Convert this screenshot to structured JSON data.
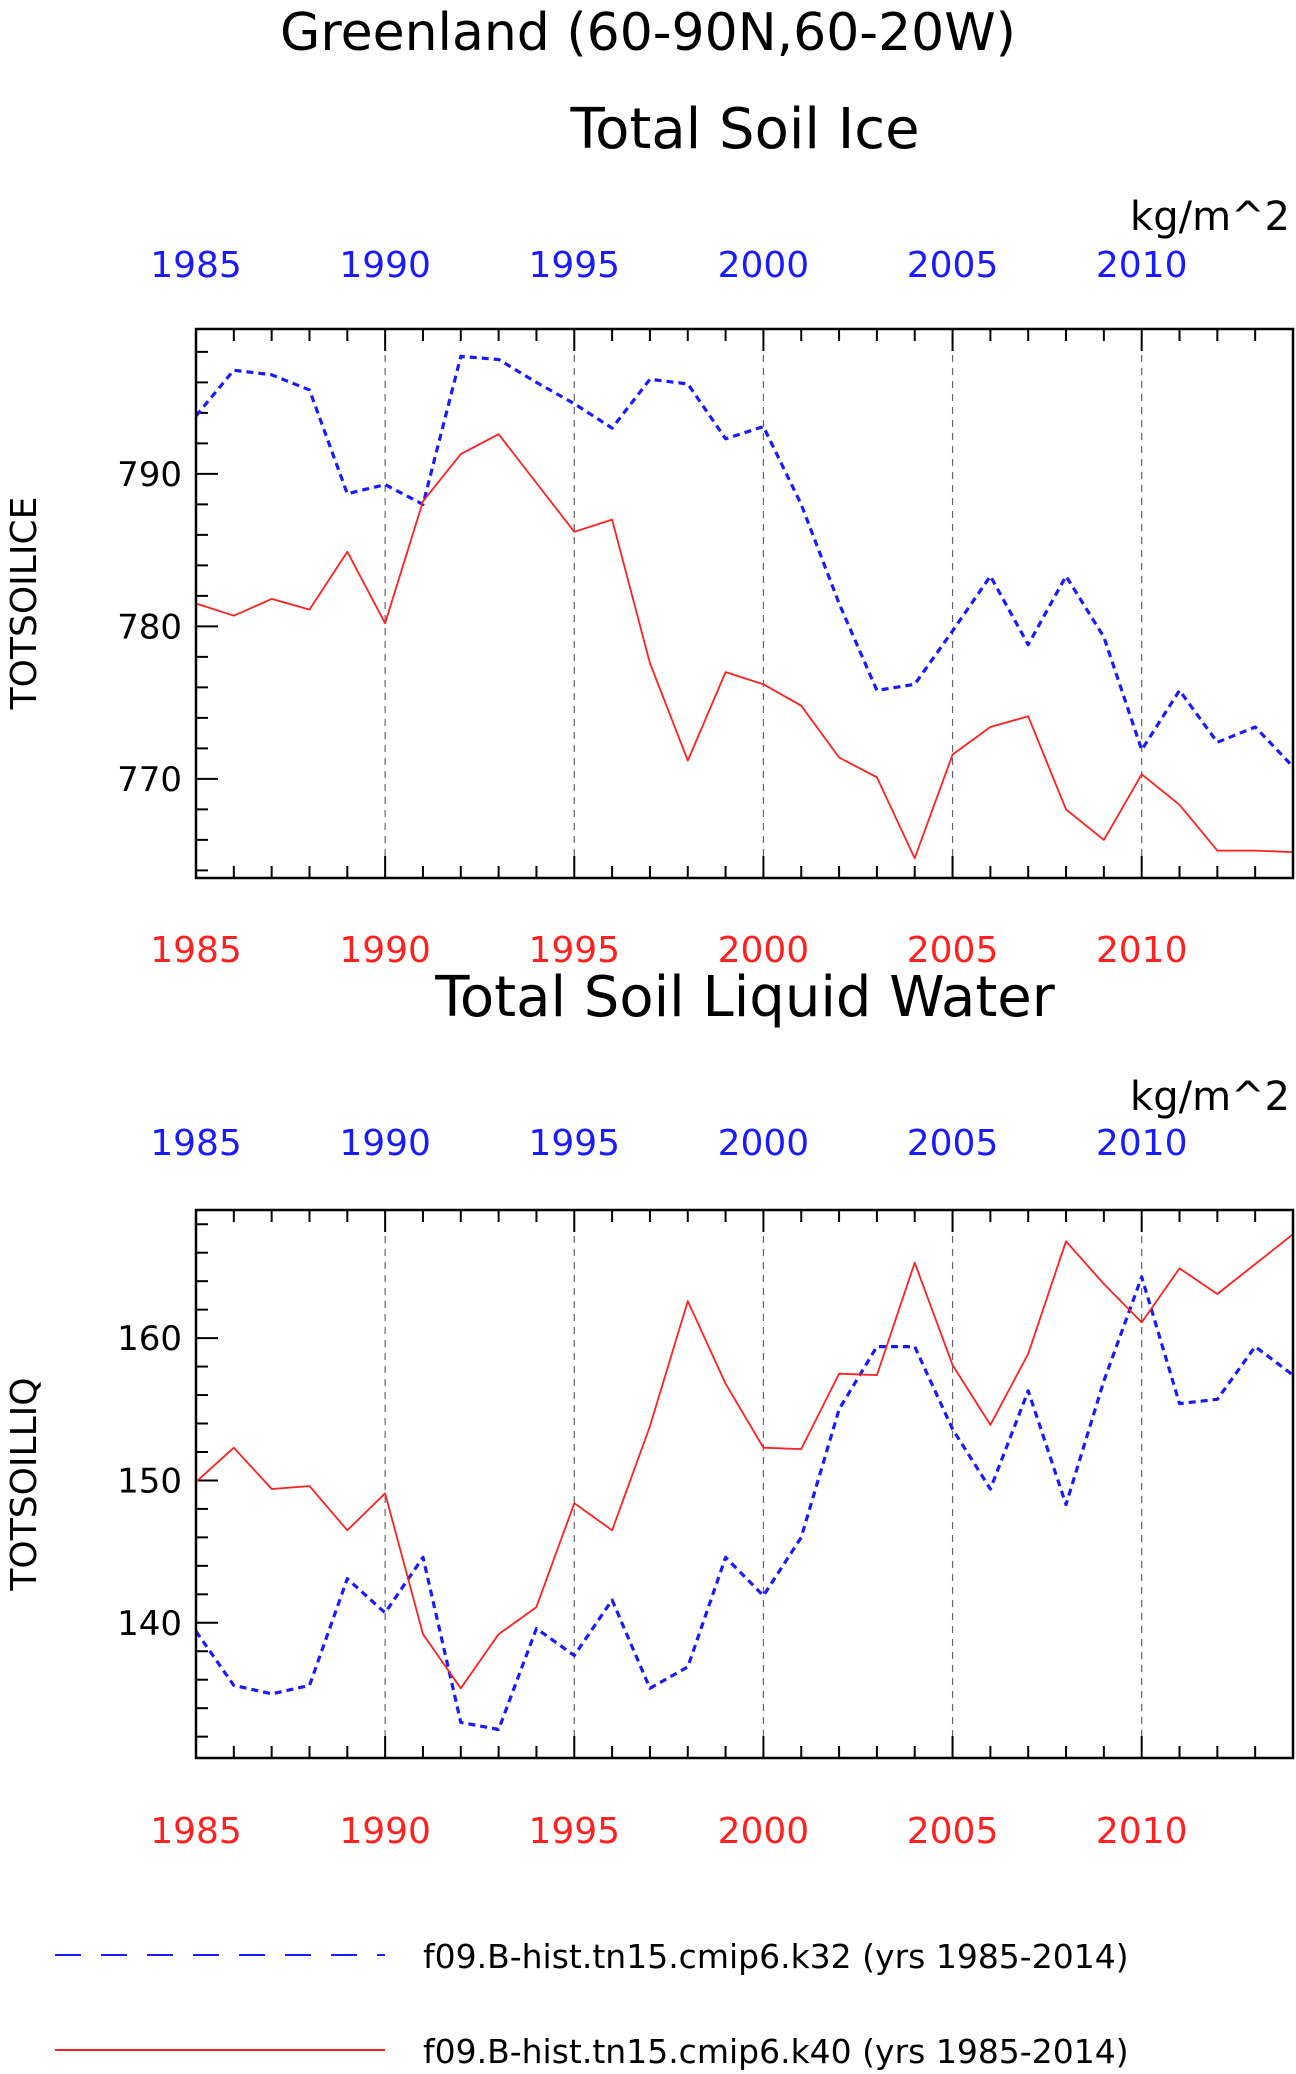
{
  "figure": {
    "title": "Greenland (60-90N,60-20W)"
  },
  "colors": {
    "blue": "#1a1aff",
    "red": "#ff2020",
    "axis": "#000000",
    "grid": "#666666"
  },
  "chart_data": [
    {
      "type": "line",
      "title": "Total Soil Ice",
      "units": "kg/m^2",
      "ylabel": "TOTSOILICE",
      "xlim": [
        1985,
        2014
      ],
      "ylim": [
        763.5,
        799.5
      ],
      "yticks": [
        770,
        780,
        790
      ],
      "xticks": [
        1985,
        1990,
        1995,
        2000,
        2005,
        2010
      ],
      "x_top_tick_color": "#1a1aff",
      "x_bottom_tick_color": "#ff2020",
      "grid": "dashed vertical at labeled years",
      "x": [
        1985,
        1986,
        1987,
        1988,
        1989,
        1990,
        1991,
        1992,
        1993,
        1994,
        1995,
        1996,
        1997,
        1998,
        1999,
        2000,
        2001,
        2002,
        2003,
        2004,
        2005,
        2006,
        2007,
        2008,
        2009,
        2010,
        2011,
        2012,
        2013,
        2014
      ],
      "series": [
        {
          "name": "f09.B-hist.tn15.cmip6.k32 (yrs 1985-2014)",
          "style": "dashed",
          "color": "#1a1aff",
          "values": [
            793.8,
            796.8,
            796.5,
            795.5,
            788.7,
            789.3,
            788.0,
            797.7,
            797.5,
            796.0,
            794.6,
            793.0,
            796.2,
            795.9,
            792.3,
            793.1,
            788.0,
            781.5,
            775.8,
            776.2,
            779.7,
            783.3,
            778.8,
            783.3,
            779.3,
            771.9,
            775.8,
            772.4,
            773.4,
            770.8
          ]
        },
        {
          "name": "f09.B-hist.tn15.cmip6.k40 (yrs 1985-2014)",
          "style": "solid",
          "color": "#ff2020",
          "values": [
            781.5,
            780.7,
            781.8,
            781.1,
            784.9,
            780.2,
            788.2,
            791.3,
            792.6,
            789.4,
            786.2,
            787.0,
            777.6,
            771.2,
            777.0,
            776.2,
            774.8,
            771.4,
            770.1,
            764.8,
            771.6,
            773.4,
            774.1,
            768.0,
            766.0,
            770.3,
            768.3,
            765.3,
            765.3,
            765.2
          ]
        }
      ]
    },
    {
      "type": "line",
      "title": "Total Soil Liquid Water",
      "units": "kg/m^2",
      "ylabel": "TOTSOILLIQ",
      "xlim": [
        1985,
        2014
      ],
      "ylim": [
        130.5,
        169
      ],
      "yticks": [
        140,
        150,
        160
      ],
      "xticks": [
        1985,
        1990,
        1995,
        2000,
        2005,
        2010
      ],
      "x_top_tick_color": "#1a1aff",
      "x_bottom_tick_color": "#ff2020",
      "grid": "dashed vertical at labeled years",
      "x": [
        1985,
        1986,
        1987,
        1988,
        1989,
        1990,
        1991,
        1992,
        1993,
        1994,
        1995,
        1996,
        1997,
        1998,
        1999,
        2000,
        2001,
        2002,
        2003,
        2004,
        2005,
        2006,
        2007,
        2008,
        2009,
        2010,
        2011,
        2012,
        2013,
        2014
      ],
      "series": [
        {
          "name": "f09.B-hist.tn15.cmip6.k32 (yrs 1985-2014)",
          "style": "dashed",
          "color": "#1a1aff",
          "values": [
            139.4,
            135.6,
            135.0,
            135.6,
            143.1,
            140.7,
            144.6,
            133.0,
            132.5,
            139.6,
            137.7,
            141.6,
            135.4,
            136.9,
            144.6,
            141.9,
            146.0,
            155.0,
            159.4,
            159.4,
            153.6,
            149.4,
            156.3,
            148.3,
            157.0,
            164.3,
            155.4,
            155.7,
            159.4,
            157.4
          ]
        },
        {
          "name": "f09.B-hist.tn15.cmip6.k40 (yrs 1985-2014)",
          "style": "solid",
          "color": "#ff2020",
          "values": [
            149.9,
            152.3,
            149.4,
            149.6,
            146.5,
            149.1,
            139.2,
            135.4,
            139.2,
            141.1,
            148.4,
            146.5,
            153.8,
            162.6,
            156.8,
            152.3,
            152.2,
            157.5,
            157.4,
            165.3,
            158.1,
            153.9,
            158.9,
            166.8,
            163.8,
            161.1,
            164.9,
            163.1,
            165.2,
            167.3
          ]
        }
      ]
    }
  ],
  "legend": {
    "placement": "bottom",
    "entries": [
      {
        "label": "f09.B-hist.tn15.cmip6.k32 (yrs 1985-2014)",
        "style": "dashed",
        "color": "#1a1aff"
      },
      {
        "label": "f09.B-hist.tn15.cmip6.k40 (yrs 1985-2014)",
        "style": "solid",
        "color": "#ff2020"
      }
    ]
  }
}
